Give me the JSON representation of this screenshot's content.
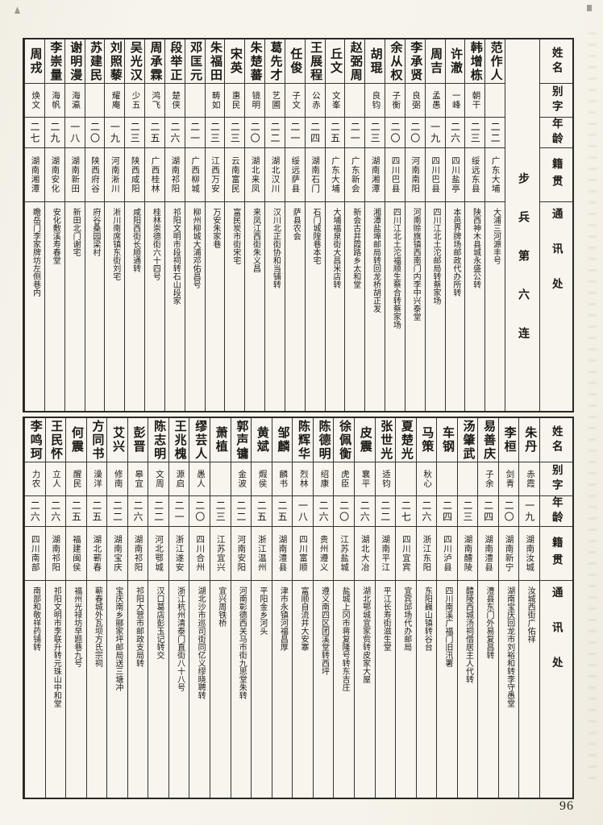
{
  "page_number": "96",
  "headers": [
    "姓名",
    "别字",
    "年龄",
    "籍贯",
    "通讯处"
  ],
  "unit_label": "步兵第六连",
  "ink_color": "#1c1a16",
  "paper_color": "#f8f5ee",
  "table1": {
    "persons": [
      {
        "name": "范作人",
        "alias": "",
        "age": "二二",
        "origin": "广东大埔",
        "addr": "大浦三河源丰号"
      },
      {
        "name": "韩增栋",
        "alias": "朝干",
        "age": "二三",
        "origin": "绥远东县",
        "addr": "陕西神木县城永盛公转"
      },
      {
        "name": "许澈",
        "alias": "一峰",
        "age": "二六",
        "origin": "四川盐亭",
        "addr": "本邑界牌场邮政代办所转"
      },
      {
        "name": "周吉",
        "alias": "孟愚",
        "age": "一九",
        "origin": "四川巴县",
        "addr": "四川江北土沱邮局转蔡家场"
      },
      {
        "name": "李承贤",
        "alias": "良弼",
        "age": "二〇",
        "origin": "河南南阳",
        "addr": "河南赊旗镇西南门内李中兴泰堂"
      },
      {
        "name": "余从权",
        "alias": "子衡",
        "age": "二〇",
        "origin": "四川巴县",
        "addr": "四川江北土沱福顺生蔡合转蔡家场"
      },
      {
        "name": "胡琨",
        "alias": "良钧",
        "age": "二三",
        "origin": "湖南湘潭",
        "addr": "湘潭盐埠邮局转回龙桥胡正发"
      },
      {
        "name": "赵弼周",
        "alias": "",
        "age": "二一",
        "origin": "广东新会",
        "addr": "新会古井霞路乡太和堂"
      },
      {
        "name": "丘文",
        "alias": "文峯",
        "age": "二五",
        "origin": "广东大埔",
        "addr": "大埔福泉街大昌米店转"
      },
      {
        "name": "王展程",
        "alias": "公赤",
        "age": "二四",
        "origin": "湖南石门",
        "addr": "石门城隍巷本宅"
      },
      {
        "name": "任俊",
        "alias": "子文",
        "age": "二一",
        "origin": "绥远萨县",
        "addr": "萨县农会"
      },
      {
        "name": "葛先才",
        "alias": "艺圃",
        "age": "二二",
        "origin": "湖北汉川",
        "addr": "汉川北正街协和当铺转"
      },
      {
        "name": "朱楚蕃",
        "alias": "镜明",
        "age": "二〇",
        "origin": "湖北来凤",
        "addr": "来凤江西街朱义昌"
      },
      {
        "name": "宋英",
        "alias": "惠民",
        "age": "二三",
        "origin": "云南富民",
        "addr": "富民炭市街宋宅"
      },
      {
        "name": "朱福田",
        "alias": "畴如",
        "age": "二三",
        "origin": "江西万安",
        "addr": "万安朱家巷"
      },
      {
        "name": "邓匡元",
        "alias": "",
        "age": "二一",
        "origin": "广西柳城",
        "addr": "柳州柳城大浦邓佑昌号"
      },
      {
        "name": "段举正",
        "alias": "楚侠",
        "age": "二六",
        "origin": "湖南祁阳",
        "addr": "祁阳文明市段祠转石山段家"
      },
      {
        "name": "周承霖",
        "alias": "鸿飞",
        "age": "二五",
        "origin": "广西桂林",
        "addr": "桂林崇德街六十四号"
      },
      {
        "name": "吴光汉",
        "alias": "少五",
        "age": "二三",
        "origin": "陕西咸阳",
        "addr": "咸阳西街长顺通转"
      },
      {
        "name": "刘照藜",
        "alias": "耀庵",
        "age": "一九",
        "origin": "河南淅川",
        "addr": "淅川南席镇东街刘宅"
      },
      {
        "name": "苏建民",
        "alias": "",
        "age": "二〇",
        "origin": "陕西府谷",
        "addr": "府谷桑园梁村"
      },
      {
        "name": "谢明漫",
        "alias": "海瀛",
        "age": "一八",
        "origin": "湖南新田",
        "addr": "新田北门谢宅"
      },
      {
        "name": "李崇量",
        "alias": "海帆",
        "age": "二九",
        "origin": "湖南安化",
        "addr": "安化敷溪寿春堂"
      },
      {
        "name": "周戎",
        "alias": "焕文",
        "age": "二七",
        "origin": "湖南湘潭",
        "addr": "瞻岳门李家牌坊左侧巷内"
      }
    ]
  },
  "table2": {
    "persons": [
      {
        "name": "朱丹",
        "alias": "赤霞",
        "age": "一九",
        "origin": "湖南汝城",
        "addr": "汝城西街广佑祥"
      },
      {
        "name": "李桓",
        "alias": "剑青",
        "age": "二〇",
        "origin": "湖南新宁",
        "addr": "湖南宝庆回龙市刘裕和转李守愚堂"
      },
      {
        "name": "易善庆",
        "alias": "子余",
        "age": "二四",
        "origin": "湖南澧县",
        "addr": "澧县东门外易复昌转"
      },
      {
        "name": "汤肇武",
        "alias": "",
        "age": "二三",
        "origin": "湖南醴陵",
        "addr": "醴陵西城汤祠借居主人代转"
      },
      {
        "name": "车钢",
        "alias": "",
        "age": "二四",
        "origin": "四川泸县",
        "addr": "四川南溪广福门旧汛署"
      },
      {
        "name": "马策",
        "alias": "秋心",
        "age": "二六",
        "origin": "浙江东阳",
        "addr": "东阳巍山镇转谷台"
      },
      {
        "name": "夏楚光",
        "alias": "",
        "age": "二七",
        "origin": "四川宜宾",
        "addr": "宜宾邱场代办邮局"
      },
      {
        "name": "张世光",
        "alias": "适钧",
        "age": "二二",
        "origin": "湖南平江",
        "addr": "平江长寿街滋生堂"
      },
      {
        "name": "皮震",
        "alias": "襄平",
        "age": "二六",
        "origin": "湖北大冶",
        "addr": "湖北鄂城宜家赀转皮家大屋"
      },
      {
        "name": "徐佩衡",
        "alias": "虎臣",
        "age": "二〇",
        "origin": "江苏盐城",
        "addr": "盐城上冈市蒋复隆号转东吉庄"
      },
      {
        "name": "陈德明",
        "alias": "绍康",
        "age": "二六",
        "origin": "贵州遵义",
        "addr": "遵义南四区团溪堂转西坪"
      },
      {
        "name": "陈辉华",
        "alias": "烈林",
        "age": "一八",
        "origin": "四川富顺",
        "addr": "富顺自流井大安寨"
      },
      {
        "name": "邹麟",
        "alias": "麟书",
        "age": "二五",
        "origin": "湖南澧县",
        "addr": "津市永镇河福昌厚"
      },
      {
        "name": "黄斌",
        "alias": "煆侯",
        "age": "二五",
        "origin": "浙江温州",
        "addr": "平阳金乡河头"
      },
      {
        "name": "郭声镛",
        "alias": "金波",
        "age": "二二",
        "origin": "河南安阳",
        "addr": "河南彰德西关马市街九思堂朱转"
      },
      {
        "name": "萧植",
        "alias": "",
        "age": "二三",
        "origin": "江苏宜兴",
        "addr": "宜兴周铁桥"
      },
      {
        "name": "缪芸人",
        "alias": "愚人",
        "age": "二〇",
        "origin": "四川合州",
        "addr": "湖北沙市巡司街同亿义缪晓聘转"
      },
      {
        "name": "王兆槐",
        "alias": "源启",
        "age": "二一",
        "origin": "浙江遂安",
        "addr": "浙江杭州清泰门直街八十八号"
      },
      {
        "name": "陈志明",
        "alias": "文周",
        "age": "二二",
        "origin": "河北鄂城",
        "addr": "汉口葛店彭玉记转交"
      },
      {
        "name": "彭晋",
        "alias": "皋宜",
        "age": "二六",
        "origin": "湖南祁阳",
        "addr": "祁阳大营市邮政支局转"
      },
      {
        "name": "艾兴",
        "alias": "修南",
        "age": "二二",
        "origin": "湖南宝庆",
        "addr": "宝庆南乡郦家坪邮局送三塘冲"
      },
      {
        "name": "方同书",
        "alias": "澡洋",
        "age": "二五",
        "origin": "湖北蕲春",
        "addr": "蕲春城外瓦坝方氏宗祠"
      },
      {
        "name": "何震",
        "alias": "醒民",
        "age": "二五",
        "origin": "福建闽侯",
        "addr": "福州光禄坊早题巷九号"
      },
      {
        "name": "王民怀",
        "alias": "立人",
        "age": "二六",
        "origin": "湖南祁阳",
        "addr": "祁阳文明市李联升转元珠山中和堂"
      },
      {
        "name": "李鸣珂",
        "alias": "力农",
        "age": "二六",
        "origin": "四川南部",
        "addr": "南部和敬祥药铺转"
      }
    ]
  }
}
